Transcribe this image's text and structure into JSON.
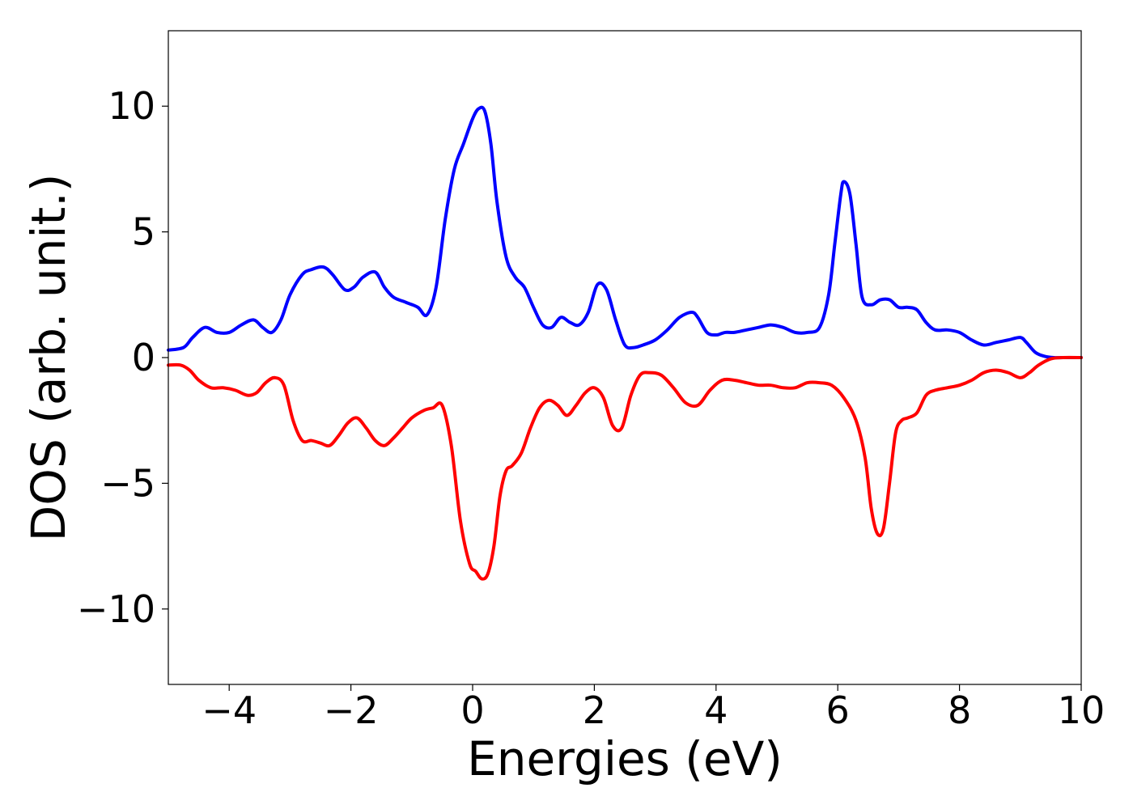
{
  "chart_data": {
    "type": "line",
    "title": "",
    "xlabel": "Energies (eV)",
    "ylabel": "DOS (arb. unit.)",
    "xlim": [
      -5,
      10
    ],
    "ylim": [
      -13,
      13
    ],
    "xticks": [
      -4,
      -2,
      0,
      2,
      4,
      6,
      8,
      10
    ],
    "xtick_labels": [
      "−4",
      "−2",
      "0",
      "2",
      "4",
      "6",
      "8",
      "10"
    ],
    "yticks": [
      -10,
      -5,
      0,
      5,
      10
    ],
    "ytick_labels": [
      "−10",
      "−5",
      "0",
      "5",
      "10"
    ],
    "grid": false,
    "legend": "none",
    "series": [
      {
        "color": "#0000ff",
        "x": [
          -5.0,
          -4.75,
          -4.6,
          -4.4,
          -4.2,
          -4.0,
          -3.8,
          -3.6,
          -3.45,
          -3.3,
          -3.15,
          -3.0,
          -2.8,
          -2.65,
          -2.45,
          -2.3,
          -2.1,
          -1.95,
          -1.8,
          -1.6,
          -1.45,
          -1.3,
          -1.1,
          -0.9,
          -0.75,
          -0.6,
          -0.45,
          -0.3,
          -0.15,
          0.0,
          0.1,
          0.2,
          0.3,
          0.4,
          0.55,
          0.7,
          0.85,
          1.0,
          1.15,
          1.3,
          1.45,
          1.6,
          1.75,
          1.9,
          2.05,
          2.2,
          2.35,
          2.5,
          2.65,
          2.8,
          3.0,
          3.2,
          3.4,
          3.6,
          3.7,
          3.85,
          4.0,
          4.15,
          4.3,
          4.5,
          4.7,
          4.9,
          5.1,
          5.3,
          5.5,
          5.7,
          5.85,
          5.95,
          6.05,
          6.1,
          6.2,
          6.3,
          6.4,
          6.55,
          6.7,
          6.85,
          7.0,
          7.15,
          7.3,
          7.45,
          7.6,
          7.8,
          8.0,
          8.2,
          8.4,
          8.6,
          8.8,
          9.0,
          9.1,
          9.25,
          9.4,
          9.55,
          9.7,
          10.0
        ],
        "y": [
          0.3,
          0.4,
          0.8,
          1.2,
          1.0,
          1.0,
          1.3,
          1.5,
          1.2,
          1.0,
          1.5,
          2.5,
          3.3,
          3.5,
          3.6,
          3.3,
          2.7,
          2.8,
          3.2,
          3.4,
          2.8,
          2.4,
          2.2,
          2.0,
          1.7,
          2.8,
          5.5,
          7.5,
          8.5,
          9.5,
          9.9,
          9.8,
          8.5,
          6.2,
          4.0,
          3.2,
          2.8,
          2.0,
          1.3,
          1.2,
          1.6,
          1.4,
          1.3,
          1.8,
          2.9,
          2.7,
          1.5,
          0.5,
          0.4,
          0.5,
          0.7,
          1.1,
          1.6,
          1.8,
          1.6,
          1.0,
          0.9,
          1.0,
          1.0,
          1.1,
          1.2,
          1.3,
          1.2,
          1.0,
          1.0,
          1.2,
          2.5,
          4.5,
          6.5,
          7.0,
          6.5,
          4.5,
          2.4,
          2.1,
          2.3,
          2.3,
          2.0,
          2.0,
          1.9,
          1.4,
          1.1,
          1.1,
          1.0,
          0.7,
          0.5,
          0.6,
          0.7,
          0.8,
          0.6,
          0.2,
          0.05,
          0.0,
          0.0,
          0.0
        ]
      },
      {
        "color": "#ff0000",
        "x": [
          -5.0,
          -4.8,
          -4.65,
          -4.5,
          -4.3,
          -4.1,
          -3.9,
          -3.7,
          -3.55,
          -3.4,
          -3.25,
          -3.1,
          -2.95,
          -2.8,
          -2.65,
          -2.5,
          -2.35,
          -2.2,
          -2.05,
          -1.9,
          -1.75,
          -1.6,
          -1.45,
          -1.3,
          -1.15,
          -1.0,
          -0.8,
          -0.65,
          -0.5,
          -0.35,
          -0.2,
          -0.05,
          0.05,
          0.15,
          0.25,
          0.35,
          0.45,
          0.55,
          0.65,
          0.8,
          0.95,
          1.1,
          1.25,
          1.4,
          1.55,
          1.7,
          1.85,
          2.0,
          2.15,
          2.3,
          2.45,
          2.6,
          2.75,
          2.9,
          3.1,
          3.3,
          3.5,
          3.7,
          3.9,
          4.1,
          4.3,
          4.5,
          4.7,
          4.9,
          5.1,
          5.3,
          5.5,
          5.7,
          5.9,
          6.1,
          6.3,
          6.45,
          6.55,
          6.65,
          6.75,
          6.85,
          6.95,
          7.05,
          7.15,
          7.3,
          7.45,
          7.6,
          7.8,
          8.0,
          8.2,
          8.4,
          8.6,
          8.8,
          9.0,
          9.15,
          9.3,
          9.5,
          9.7,
          10.0
        ],
        "y": [
          -0.3,
          -0.3,
          -0.5,
          -0.9,
          -1.2,
          -1.2,
          -1.3,
          -1.5,
          -1.4,
          -1.0,
          -0.8,
          -1.1,
          -2.5,
          -3.3,
          -3.3,
          -3.4,
          -3.5,
          -3.1,
          -2.6,
          -2.4,
          -2.8,
          -3.3,
          -3.5,
          -3.2,
          -2.8,
          -2.4,
          -2.1,
          -2.0,
          -1.9,
          -3.5,
          -6.5,
          -8.2,
          -8.5,
          -8.8,
          -8.6,
          -7.5,
          -5.5,
          -4.5,
          -4.3,
          -3.8,
          -2.8,
          -2.0,
          -1.7,
          -1.9,
          -2.3,
          -1.9,
          -1.4,
          -1.2,
          -1.6,
          -2.7,
          -2.8,
          -1.5,
          -0.7,
          -0.6,
          -0.7,
          -1.2,
          -1.8,
          -1.9,
          -1.3,
          -0.9,
          -0.9,
          -1.0,
          -1.1,
          -1.1,
          -1.2,
          -1.2,
          -1.0,
          -1.0,
          -1.1,
          -1.6,
          -2.5,
          -4.0,
          -6.0,
          -7.0,
          -6.8,
          -5.0,
          -3.0,
          -2.5,
          -2.4,
          -2.2,
          -1.5,
          -1.3,
          -1.2,
          -1.1,
          -0.9,
          -0.6,
          -0.5,
          -0.6,
          -0.8,
          -0.6,
          -0.3,
          -0.05,
          0.0,
          0.0
        ]
      }
    ]
  }
}
